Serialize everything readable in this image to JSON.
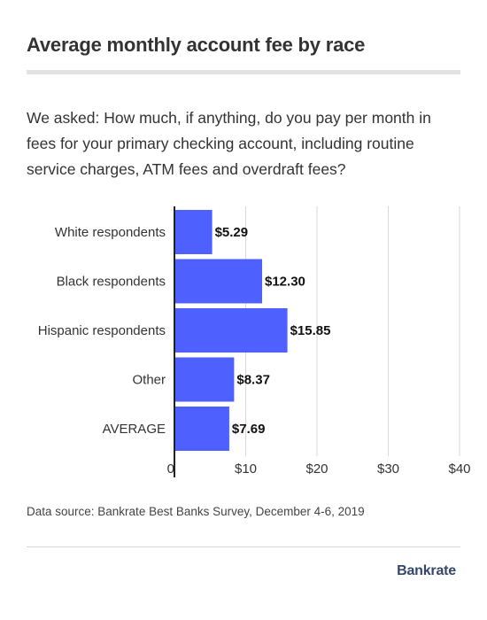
{
  "title": "Average monthly account fee by race",
  "question": "We asked: How much, if anything, do you pay per month in fees for your primary checking account, including routine service charges, ATM fees and overdraft fees?",
  "source": "Data source: Bankrate Best Banks Survey, December 4-6, 2019",
  "brand": "Bankrate",
  "colors": {
    "bar": "#4e61ff",
    "grid": "#d9d9d9",
    "axis": "#222222",
    "text": "#333333"
  },
  "chart_data": {
    "type": "bar",
    "orientation": "horizontal",
    "title": "",
    "xlabel": "",
    "ylabel": "",
    "categories": [
      "White respondents",
      "Black respondents",
      "Hispanic respondents",
      "Other",
      "AVERAGE"
    ],
    "values": [
      5.29,
      12.3,
      15.85,
      8.37,
      7.69
    ],
    "value_labels": [
      "$5.29",
      "$12.30",
      "$15.85",
      "$8.37",
      "$7.69"
    ],
    "xlim": [
      0,
      40
    ],
    "ticks": [
      0,
      10,
      20,
      30,
      40
    ],
    "tick_labels": [
      "0",
      "$10",
      "$20",
      "$30",
      "$40"
    ],
    "grid": true
  }
}
